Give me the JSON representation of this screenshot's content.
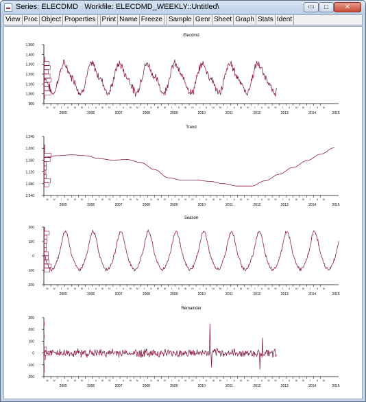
{
  "window": {
    "title": "Series: ELECDMD   Workfile: ELECDMD_WEEKLY::Untitled\\",
    "controls": {
      "minimize": "▭",
      "maximize": "□",
      "close": "✕"
    }
  },
  "toolbar": {
    "buttons": [
      "View",
      "Proc",
      "Object",
      "Properties",
      "Print",
      "Name",
      "Freeze",
      "Sample",
      "Genr",
      "Sheet",
      "Graph",
      "Stats",
      "Ident"
    ]
  },
  "colors": {
    "series": "#8b1c3c",
    "histogram": "#8b1c3c",
    "axis": "#000000",
    "ticklabel": "#000000"
  },
  "chart_data": [
    {
      "type": "line",
      "title": "Elecdmd",
      "ylim": [
        900,
        1500
      ],
      "yticks": [
        "900",
        "1,000",
        "1,100",
        "1,200",
        "1,300",
        "1,400",
        "1,500"
      ],
      "ytick_values": [
        900,
        1000,
        1100,
        1200,
        1300,
        1400,
        1500
      ],
      "x_years": [
        "2005",
        "2006",
        "2007",
        "2008",
        "2009",
        "2010",
        "2011",
        "2012",
        "2013",
        "2014",
        "2015"
      ],
      "x_quarters": [
        "III",
        "IV",
        "I",
        "II",
        "III",
        "IV",
        "I",
        "II",
        "III",
        "IV",
        "I",
        "II",
        "III",
        "IV",
        "I",
        "II",
        "III",
        "IV",
        "I",
        "II",
        "III",
        "IV",
        "I",
        "II",
        "III",
        "IV",
        "I",
        "II",
        "III",
        "IV",
        "I",
        "II",
        "III",
        "IV",
        "I",
        "II",
        "III",
        "IV",
        "I",
        "II",
        "III"
      ],
      "series": [
        {
          "x_start": 2004.5,
          "x_end": 2012.9,
          "level": 1140,
          "amplitude": 180,
          "noise": 45,
          "peak_phase": 0.28
        }
      ],
      "histogram_side": "left",
      "grid": false
    },
    {
      "type": "line",
      "title": "Trend",
      "ylim": [
        1040,
        1240
      ],
      "yticks": [
        "1,040",
        "1,080",
        "1,120",
        "1,160",
        "1,200",
        "1,240"
      ],
      "ytick_values": [
        1040,
        1080,
        1120,
        1160,
        1200,
        1240
      ],
      "x_years": [
        "2005",
        "2006",
        "2007",
        "2008",
        "2009",
        "2010",
        "2011",
        "2012",
        "2013",
        "2014",
        "2015"
      ],
      "x_quarters": [
        "III",
        "IV",
        "I",
        "II",
        "III",
        "IV",
        "I",
        "II",
        "III",
        "IV",
        "I",
        "II",
        "III",
        "IV",
        "I",
        "II",
        "III",
        "IV",
        "I",
        "II",
        "III",
        "IV",
        "I",
        "II",
        "III",
        "IV",
        "I",
        "II",
        "III",
        "IV",
        "I",
        "II",
        "III",
        "IV",
        "I",
        "II",
        "III",
        "IV",
        "I",
        "II",
        "III"
      ],
      "series": [
        {
          "x": [
            2004.5,
            2005.0,
            2005.5,
            2006.0,
            2006.5,
            2007.0,
            2007.5,
            2008.0,
            2008.5,
            2009.0,
            2009.5,
            2010.0,
            2010.5,
            2011.0,
            2011.5,
            2012.0,
            2012.5,
            2013.0,
            2013.5,
            2014.0,
            2014.5,
            2015.0
          ],
          "y": [
            1170,
            1175,
            1178,
            1175,
            1165,
            1160,
            1162,
            1152,
            1128,
            1100,
            1092,
            1092,
            1088,
            1080,
            1072,
            1072,
            1090,
            1112,
            1135,
            1158,
            1180,
            1202
          ]
        }
      ],
      "histogram_side": "left",
      "grid": false
    },
    {
      "type": "line",
      "title": "Season",
      "ylim": [
        -200,
        200
      ],
      "yticks": [
        "-200",
        "-100",
        "0",
        "100",
        "200"
      ],
      "ytick_values": [
        -200,
        -100,
        0,
        100,
        200
      ],
      "x_years": [
        "2005",
        "2006",
        "2007",
        "2008",
        "2009",
        "2010",
        "2011",
        "2012",
        "2013",
        "2014",
        "2015"
      ],
      "x_quarters": [
        "III",
        "IV",
        "I",
        "II",
        "III",
        "IV",
        "I",
        "II",
        "III",
        "IV",
        "I",
        "II",
        "III",
        "IV",
        "I",
        "II",
        "III",
        "IV",
        "I",
        "II",
        "III",
        "IV",
        "I",
        "II",
        "III",
        "IV",
        "I",
        "II",
        "III",
        "IV",
        "I",
        "II",
        "III",
        "IV",
        "I",
        "II",
        "III",
        "IV",
        "I",
        "II",
        "III"
      ],
      "series": [
        {
          "x_start": 2004.5,
          "x_end": 2015.15,
          "level": 0,
          "amplitude": 170,
          "noise": 12,
          "peak_phase": 0.28
        }
      ],
      "histogram_side": "left",
      "grid": false
    },
    {
      "type": "line",
      "title": "Remainder",
      "ylim": [
        -200,
        300
      ],
      "yticks": [
        "-200",
        "-100",
        "0",
        "100",
        "200",
        "300"
      ],
      "ytick_values": [
        -200,
        -100,
        0,
        100,
        200,
        300
      ],
      "x_years": [
        "2005",
        "2006",
        "2007",
        "2008",
        "2009",
        "2010",
        "2011",
        "2012",
        "2013",
        "2014",
        "2015"
      ],
      "x_quarters": [
        "III",
        "IV",
        "I",
        "II",
        "III",
        "IV",
        "I",
        "II",
        "III",
        "IV",
        "I",
        "II",
        "III",
        "IV",
        "I",
        "II",
        "III",
        "IV",
        "I",
        "II",
        "III",
        "IV",
        "I",
        "II",
        "III",
        "IV",
        "I",
        "II",
        "III",
        "IV",
        "I",
        "II",
        "III",
        "IV",
        "I",
        "II",
        "III",
        "IV",
        "I",
        "II",
        "III"
      ],
      "series": [
        {
          "x_start": 2004.5,
          "x_end": 2012.9,
          "level": 0,
          "amplitude": 0,
          "noise": 38,
          "spikes": [
            {
              "x": 2010.5,
              "y": 250
            },
            {
              "x": 2010.55,
              "y": -120
            },
            {
              "x": 2012.4,
              "y": 130
            },
            {
              "x": 2012.3,
              "y": -140
            }
          ]
        }
      ],
      "histogram_side": "left",
      "grid": false
    }
  ]
}
